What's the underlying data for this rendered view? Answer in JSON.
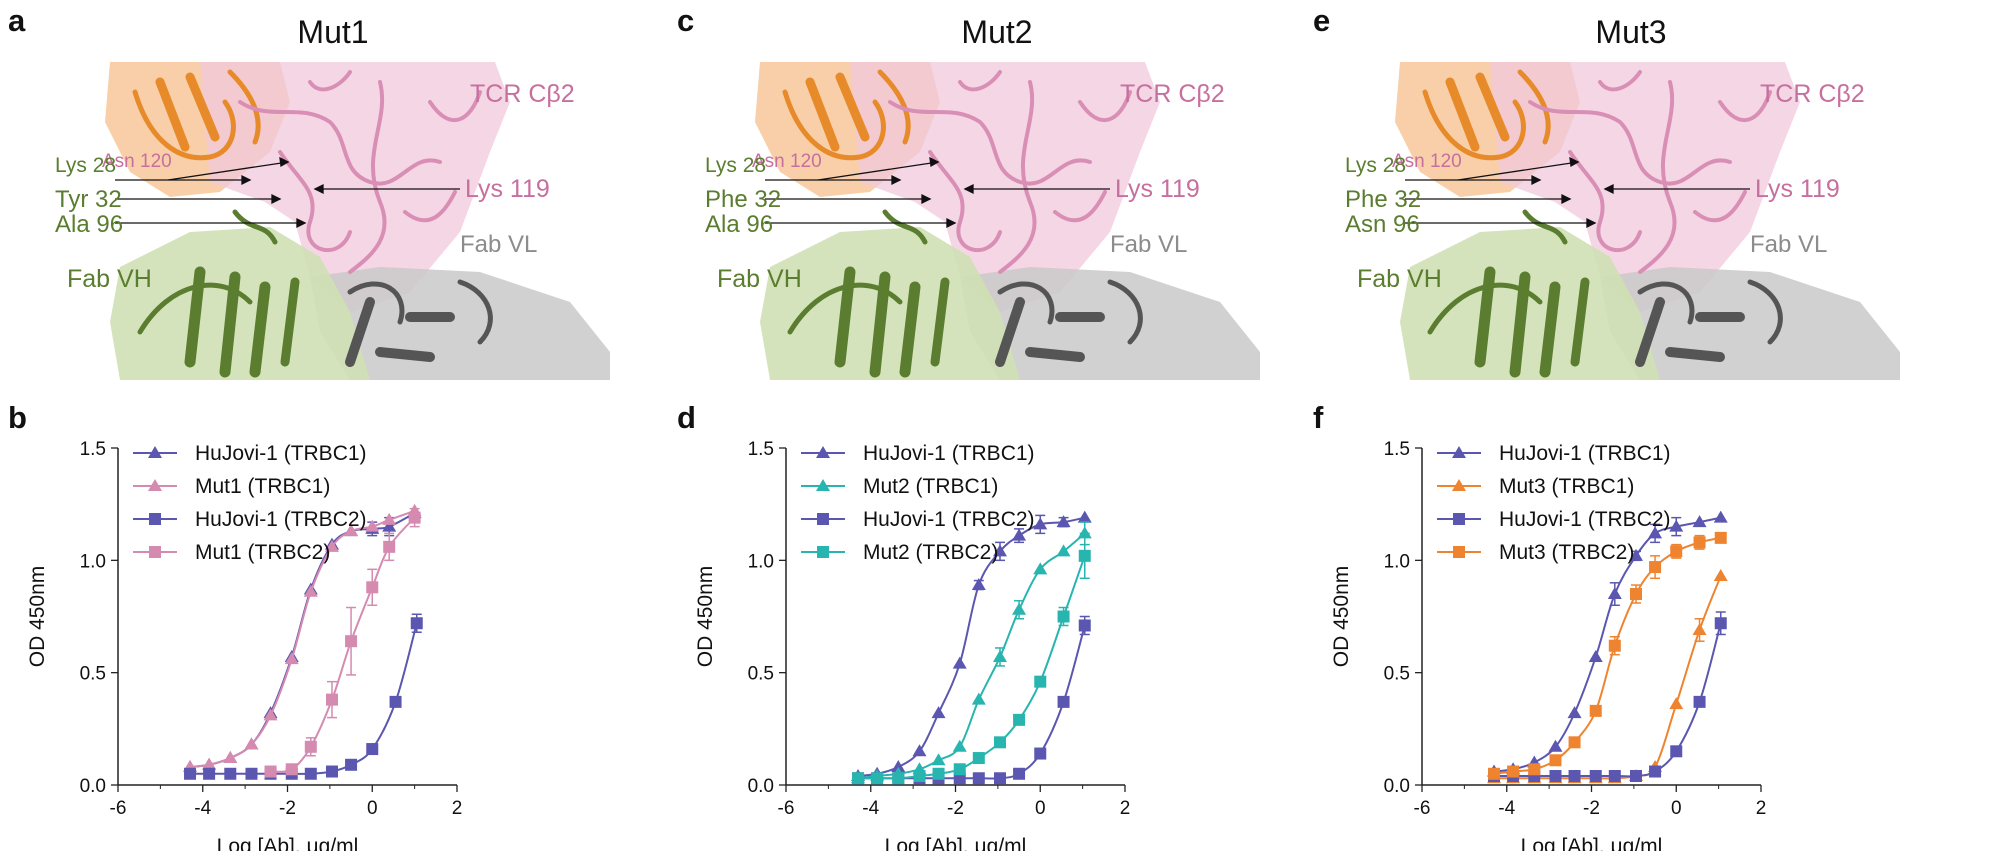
{
  "panels": [
    {
      "structure_letter": "a",
      "chart_letter": "b",
      "title": "Mut1",
      "labels": {
        "tcr": "TCR Cβ2",
        "asn": "Asn 120",
        "lys28": "Lys 28",
        "lys119": "Lys 119",
        "res32": "Tyr 32",
        "res96": "Ala 96",
        "vh": "Fab VH",
        "vl": "Fab VL"
      }
    },
    {
      "structure_letter": "c",
      "chart_letter": "d",
      "title": "Mut2",
      "labels": {
        "tcr": "TCR Cβ2",
        "asn": "Asn 120",
        "lys28": "Lys 28",
        "lys119": "Lys 119",
        "res32": "Phe 32",
        "res96": "Ala 96",
        "vh": "Fab VH",
        "vl": "Fab VL"
      }
    },
    {
      "structure_letter": "e",
      "chart_letter": "f",
      "title": "Mut3",
      "labels": {
        "tcr": "TCR Cβ2",
        "asn": "Asn 120",
        "lys28": "Lys 28",
        "lys119": "Lys 119",
        "res32": "Phe 32",
        "res96": "Asn 96",
        "vh": "Fab VH",
        "vl": "Fab VL"
      }
    }
  ],
  "colors": {
    "hujovi": "#5b57b0",
    "mut1": "#d58ab0",
    "mut2": "#28b5b0",
    "mut3": "#ee8430",
    "tcr": "#c76f9e",
    "fab_vh": "#5a7d2f",
    "fab_vl": "#8c8c8c",
    "orange_domain": "#e78a2a"
  },
  "chart_data": [
    {
      "type": "scatter",
      "xlabel": "Log [Ab], μg/ml",
      "ylabel": "OD 450nm",
      "xlim": [
        -6,
        2
      ],
      "ylim": [
        0,
        1.5
      ],
      "xticks": [
        "-6",
        "-4",
        "-2",
        "0",
        "2"
      ],
      "yticks": [
        "0.0",
        "0.5",
        "1.0",
        "1.5"
      ],
      "legend_position": "top-left",
      "series": [
        {
          "name": "HuJovi-1 (TRBC1)",
          "marker": "triangle",
          "color": "#5b57b0",
          "x": [
            -4.3,
            -3.85,
            -3.35,
            -2.85,
            -2.4,
            -1.9,
            -1.45,
            -0.95,
            -0.5,
            0,
            0.4,
            1.0
          ],
          "y": [
            0.08,
            0.09,
            0.12,
            0.18,
            0.32,
            0.57,
            0.87,
            1.07,
            1.13,
            1.14,
            1.15,
            1.21
          ],
          "err": [
            0,
            0,
            0,
            0,
            0,
            0,
            0,
            0,
            0,
            0.03,
            0.04,
            0
          ]
        },
        {
          "name": "Mut1 (TRBC1)",
          "marker": "triangle",
          "color": "#d58ab0",
          "x": [
            -4.3,
            -3.85,
            -3.35,
            -2.85,
            -2.4,
            -1.9,
            -1.45,
            -0.95,
            -0.5,
            0,
            0.4,
            1.0
          ],
          "y": [
            0.08,
            0.09,
            0.12,
            0.18,
            0.31,
            0.56,
            0.86,
            1.06,
            1.13,
            1.15,
            1.18,
            1.22
          ],
          "err": [
            0,
            0,
            0,
            0,
            0,
            0,
            0,
            0,
            0,
            0,
            0,
            0
          ]
        },
        {
          "name": "HuJovi-1 (TRBC2)",
          "marker": "square",
          "color": "#5b57b0",
          "x": [
            -4.3,
            -3.85,
            -3.35,
            -2.85,
            -2.4,
            -1.9,
            -1.45,
            -0.95,
            -0.5,
            0,
            0.55,
            1.05
          ],
          "y": [
            0.05,
            0.05,
            0.05,
            0.05,
            0.05,
            0.05,
            0.05,
            0.06,
            0.09,
            0.16,
            0.37,
            0.72
          ],
          "err": [
            0,
            0,
            0,
            0,
            0,
            0,
            0,
            0,
            0,
            0,
            0.01,
            0.04
          ]
        },
        {
          "name": "Mut1 (TRBC2)",
          "marker": "square",
          "color": "#d58ab0",
          "x": [
            -2.4,
            -1.9,
            -1.45,
            -0.95,
            -0.5,
            0,
            0.4,
            1.0
          ],
          "y": [
            0.06,
            0.07,
            0.17,
            0.38,
            0.64,
            0.88,
            1.06,
            1.19
          ],
          "err": [
            0,
            0,
            0.04,
            0.08,
            0.15,
            0.08,
            0.06,
            0.04
          ]
        }
      ]
    },
    {
      "type": "scatter",
      "xlabel": "Log [Ab], μg/ml",
      "ylabel": "OD 450nm",
      "xlim": [
        -6,
        2
      ],
      "ylim": [
        0,
        1.5
      ],
      "xticks": [
        "-6",
        "-4",
        "-2",
        "0",
        "2"
      ],
      "yticks": [
        "0.0",
        "0.5",
        "1.0",
        "1.5"
      ],
      "legend_position": "top-left",
      "series": [
        {
          "name": "HuJovi-1 (TRBC1)",
          "marker": "triangle",
          "color": "#5b57b0",
          "x": [
            -4.3,
            -3.85,
            -3.35,
            -2.85,
            -2.4,
            -1.9,
            -1.45,
            -0.95,
            -0.5,
            0,
            0.55,
            1.05
          ],
          "y": [
            0.04,
            0.05,
            0.08,
            0.15,
            0.32,
            0.54,
            0.89,
            1.04,
            1.11,
            1.16,
            1.17,
            1.19
          ],
          "err": [
            0,
            0,
            0,
            0,
            0,
            0,
            0.02,
            0.04,
            0.03,
            0.04,
            0.02,
            0
          ]
        },
        {
          "name": "Mut2 (TRBC1)",
          "marker": "triangle",
          "color": "#28b5b0",
          "x": [
            -4.3,
            -3.85,
            -3.35,
            -2.85,
            -2.4,
            -1.9,
            -1.45,
            -0.95,
            -0.5,
            0,
            0.55,
            1.05
          ],
          "y": [
            0.03,
            0.04,
            0.05,
            0.07,
            0.11,
            0.17,
            0.38,
            0.57,
            0.78,
            0.96,
            1.04,
            1.12
          ],
          "err": [
            0,
            0,
            0,
            0,
            0,
            0,
            0,
            0.04,
            0.04,
            0,
            0,
            0.05
          ]
        },
        {
          "name": "HuJovi-1 (TRBC2)",
          "marker": "square",
          "color": "#5b57b0",
          "x": [
            -4.3,
            -3.85,
            -3.35,
            -2.85,
            -2.4,
            -1.9,
            -1.45,
            -0.95,
            -0.5,
            0,
            0.55,
            1.05
          ],
          "y": [
            0.03,
            0.03,
            0.03,
            0.03,
            0.03,
            0.03,
            0.03,
            0.03,
            0.05,
            0.14,
            0.37,
            0.71
          ],
          "err": [
            0,
            0,
            0,
            0,
            0,
            0,
            0,
            0,
            0,
            0,
            0,
            0.04
          ]
        },
        {
          "name": "Mut2 (TRBC2)",
          "marker": "square",
          "color": "#28b5b0",
          "x": [
            -4.3,
            -3.85,
            -3.35,
            -2.85,
            -2.4,
            -1.9,
            -1.45,
            -0.95,
            -0.5,
            0,
            0.55,
            1.05
          ],
          "y": [
            0.03,
            0.03,
            0.03,
            0.04,
            0.05,
            0.07,
            0.12,
            0.19,
            0.29,
            0.46,
            0.75,
            1.02
          ],
          "err": [
            0,
            0,
            0,
            0,
            0,
            0,
            0,
            0,
            0,
            0,
            0.04,
            0.1
          ]
        }
      ]
    },
    {
      "type": "scatter",
      "xlabel": "Log [Ab], μg/ml",
      "ylabel": "OD 450nm",
      "xlim": [
        -6,
        2
      ],
      "ylim": [
        0,
        1.5
      ],
      "xticks": [
        "-6",
        "-4",
        "-2",
        "0",
        "2"
      ],
      "yticks": [
        "0.0",
        "0.5",
        "1.0",
        "1.5"
      ],
      "legend_position": "top-left",
      "series": [
        {
          "name": "HuJovi-1 (TRBC1)",
          "marker": "triangle",
          "color": "#5b57b0",
          "x": [
            -4.3,
            -3.85,
            -3.35,
            -2.85,
            -2.4,
            -1.9,
            -1.45,
            -0.95,
            -0.5,
            0,
            0.55,
            1.05
          ],
          "y": [
            0.06,
            0.07,
            0.1,
            0.17,
            0.32,
            0.57,
            0.85,
            1.02,
            1.12,
            1.15,
            1.17,
            1.19
          ],
          "err": [
            0,
            0,
            0,
            0,
            0,
            0,
            0.05,
            0.02,
            0.04,
            0.04,
            0,
            0
          ]
        },
        {
          "name": "Mut3 (TRBC1)",
          "marker": "triangle",
          "color": "#ee8430",
          "x": [
            -4.3,
            -3.85,
            -3.35,
            -2.85,
            -2.4,
            -1.9,
            -1.45,
            -0.95,
            -0.5,
            0,
            0.55,
            1.05
          ],
          "y": [
            0.03,
            0.03,
            0.03,
            0.03,
            0.03,
            0.03,
            0.03,
            0.04,
            0.08,
            0.36,
            0.69,
            0.93
          ],
          "err": [
            0,
            0,
            0,
            0,
            0,
            0,
            0,
            0,
            0,
            0,
            0.05,
            0
          ]
        },
        {
          "name": "HuJovi-1 (TRBC2)",
          "marker": "square",
          "color": "#5b57b0",
          "x": [
            -4.3,
            -3.85,
            -3.35,
            -2.85,
            -2.4,
            -1.9,
            -1.45,
            -0.95,
            -0.5,
            0,
            0.55,
            1.05
          ],
          "y": [
            0.04,
            0.04,
            0.04,
            0.04,
            0.04,
            0.04,
            0.04,
            0.04,
            0.06,
            0.15,
            0.37,
            0.72
          ],
          "err": [
            0,
            0,
            0,
            0,
            0,
            0,
            0,
            0,
            0,
            0,
            0,
            0.05
          ]
        },
        {
          "name": "Mut3 (TRBC2)",
          "marker": "square",
          "color": "#ee8430",
          "x": [
            -4.3,
            -3.85,
            -3.35,
            -2.85,
            -2.4,
            -1.9,
            -1.45,
            -0.95,
            -0.5,
            0,
            0.55,
            1.05
          ],
          "y": [
            0.05,
            0.06,
            0.07,
            0.11,
            0.19,
            0.33,
            0.62,
            0.85,
            0.97,
            1.04,
            1.08,
            1.1
          ],
          "err": [
            0,
            0,
            0,
            0,
            0,
            0,
            0.04,
            0.04,
            0.05,
            0.03,
            0.03,
            0.02
          ]
        }
      ]
    }
  ]
}
